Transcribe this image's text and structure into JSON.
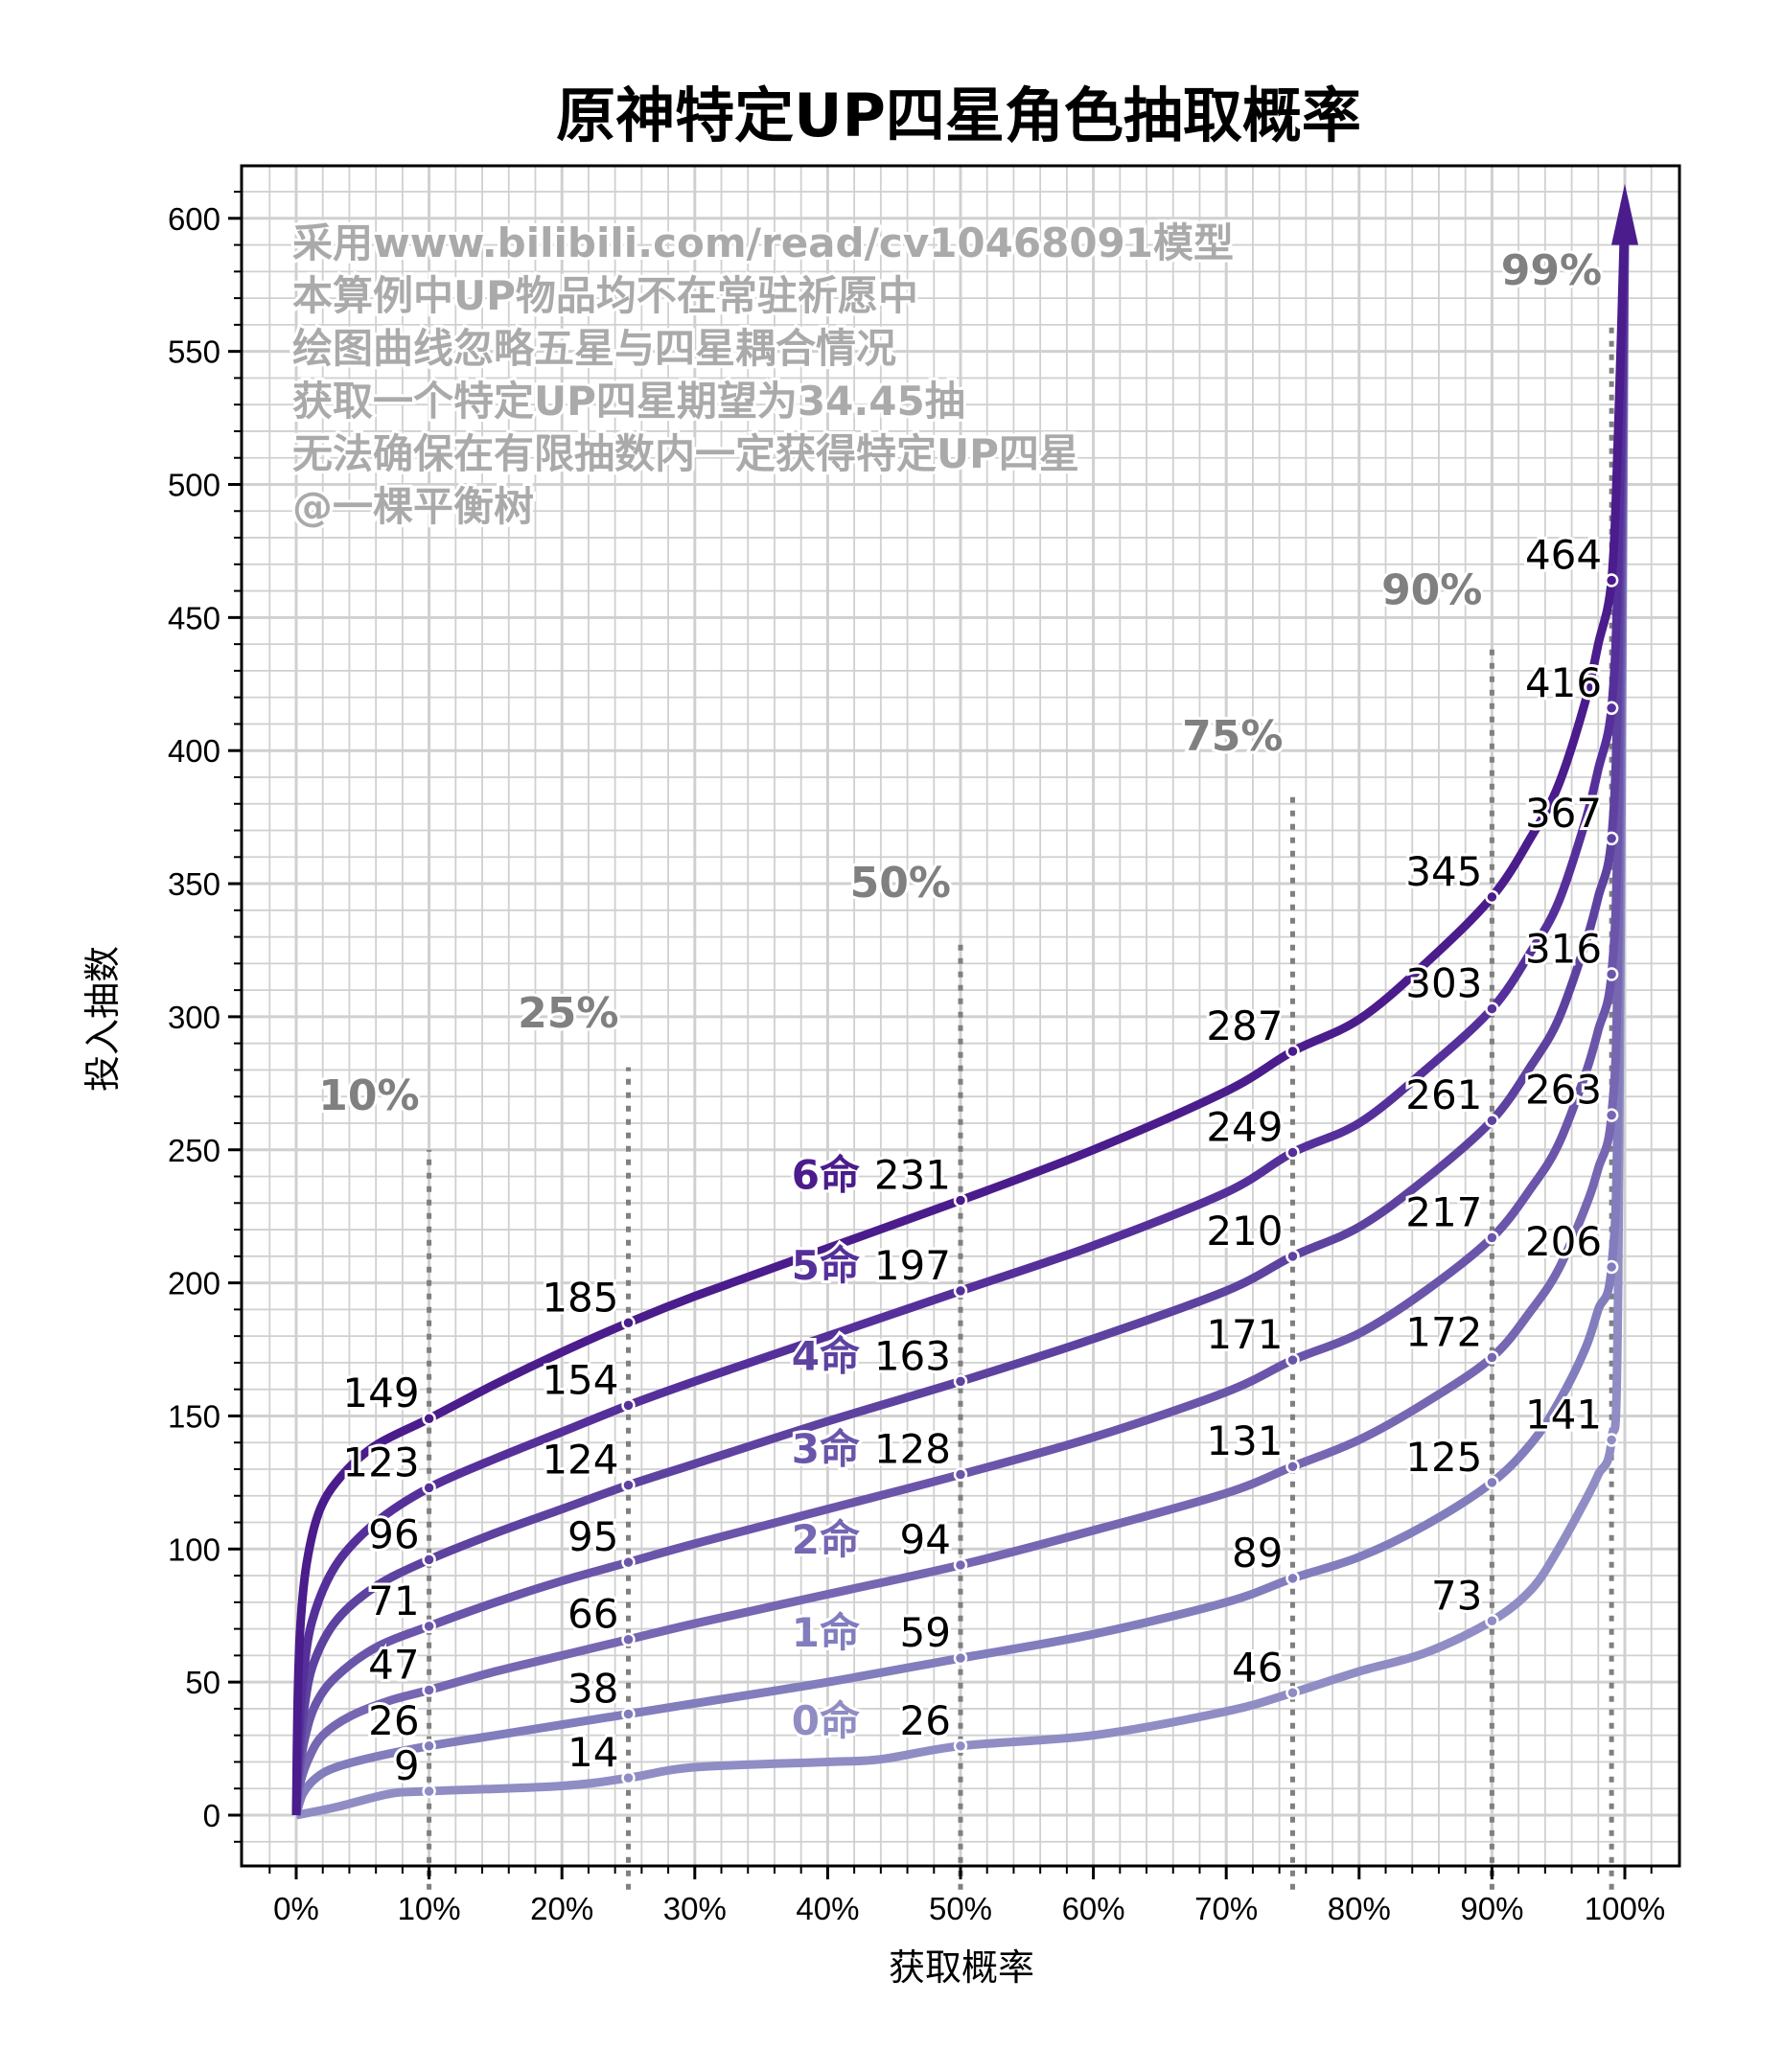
{
  "chart_data": {
    "type": "line",
    "title": "原神特定UP四星角色抽取概率",
    "xlabel": "获取概率",
    "ylabel": "投入抽数",
    "xlim": [
      -4,
      104
    ],
    "ylim": [
      -20,
      620
    ],
    "grid": true,
    "x_ticks": [
      "0%",
      "10%",
      "20%",
      "30%",
      "40%",
      "50%",
      "60%",
      "70%",
      "80%",
      "90%",
      "100%"
    ],
    "x_tick_values": [
      0,
      10,
      20,
      30,
      40,
      50,
      60,
      70,
      80,
      90,
      100
    ],
    "y_ticks": [
      0,
      50,
      100,
      150,
      200,
      250,
      300,
      350,
      400,
      450,
      500,
      550,
      600
    ],
    "annotation_lines": [
      "采用www.bilibili.com/read/cv10468091模型",
      "本算例中UP物品均不在常驻祈愿中",
      "绘图曲线忽略五星与四星耦合情况",
      "获取一个特定UP四星期望为34.45抽",
      "无法确保在有限抽数内一定获得特定UP四星",
      "@一棵平衡树"
    ],
    "percentile_markers": [
      {
        "x": 10,
        "label": "10%",
        "top": 250
      },
      {
        "x": 25,
        "label": "25%",
        "top": 281
      },
      {
        "x": 50,
        "label": "50%",
        "top": 330
      },
      {
        "x": 75,
        "label": "75%",
        "top": 385
      },
      {
        "x": 90,
        "label": "90%",
        "top": 440
      },
      {
        "x": 99,
        "label": "99%",
        "top": 560
      }
    ],
    "marker_x": [
      10,
      25,
      50,
      75,
      90,
      99
    ],
    "series": [
      {
        "name": "0命",
        "color": "#8f8dc4",
        "values": [
          9,
          14,
          26,
          46,
          73,
          141
        ],
        "curve": [
          [
            0,
            0
          ],
          [
            3,
            3
          ],
          [
            7,
            8
          ],
          [
            10,
            9
          ],
          [
            20,
            11
          ],
          [
            25,
            14
          ],
          [
            30,
            18
          ],
          [
            40,
            20
          ],
          [
            44,
            21
          ],
          [
            50,
            26
          ],
          [
            60,
            30
          ],
          [
            70,
            39
          ],
          [
            75,
            46
          ],
          [
            80,
            54
          ],
          [
            85,
            61
          ],
          [
            90,
            73
          ],
          [
            93,
            85
          ],
          [
            95,
            100
          ],
          [
            97,
            118
          ],
          [
            98,
            128
          ],
          [
            99,
            141
          ],
          [
            99.5,
            200
          ],
          [
            100,
            600
          ]
        ]
      },
      {
        "name": "1命",
        "color": "#827dbd",
        "values": [
          26,
          38,
          59,
          89,
          125,
          206
        ],
        "curve": [
          [
            0,
            0
          ],
          [
            0.5,
            8
          ],
          [
            1.5,
            14
          ],
          [
            3,
            18
          ],
          [
            6,
            22
          ],
          [
            10,
            26
          ],
          [
            15,
            30
          ],
          [
            20,
            34
          ],
          [
            25,
            38
          ],
          [
            30,
            42
          ],
          [
            40,
            50
          ],
          [
            50,
            59
          ],
          [
            60,
            68
          ],
          [
            70,
            80
          ],
          [
            75,
            89
          ],
          [
            80,
            97
          ],
          [
            85,
            109
          ],
          [
            90,
            125
          ],
          [
            93,
            140
          ],
          [
            95,
            155
          ],
          [
            97,
            175
          ],
          [
            98,
            190
          ],
          [
            99,
            206
          ],
          [
            99.5,
            280
          ],
          [
            100,
            600
          ]
        ]
      },
      {
        "name": "2命",
        "color": "#7766b2",
        "values": [
          47,
          66,
          94,
          131,
          172,
          263
        ],
        "curve": [
          [
            0,
            0
          ],
          [
            0.3,
            12
          ],
          [
            1,
            22
          ],
          [
            2,
            30
          ],
          [
            4,
            37
          ],
          [
            7,
            43
          ],
          [
            10,
            47
          ],
          [
            15,
            54
          ],
          [
            20,
            60
          ],
          [
            25,
            66
          ],
          [
            30,
            72
          ],
          [
            40,
            83
          ],
          [
            50,
            94
          ],
          [
            60,
            107
          ],
          [
            70,
            121
          ],
          [
            75,
            131
          ],
          [
            80,
            141
          ],
          [
            85,
            155
          ],
          [
            90,
            172
          ],
          [
            93,
            190
          ],
          [
            95,
            205
          ],
          [
            97,
            228
          ],
          [
            98,
            243
          ],
          [
            99,
            263
          ],
          [
            99.5,
            330
          ],
          [
            100,
            600
          ]
        ]
      },
      {
        "name": "3命",
        "color": "#6a55aa",
        "values": [
          71,
          95,
          128,
          171,
          217,
          316
        ],
        "curve": [
          [
            0,
            0
          ],
          [
            0.2,
            15
          ],
          [
            0.7,
            30
          ],
          [
            1.5,
            42
          ],
          [
            3,
            52
          ],
          [
            6,
            63
          ],
          [
            10,
            71
          ],
          [
            15,
            80
          ],
          [
            20,
            88
          ],
          [
            25,
            95
          ],
          [
            30,
            102
          ],
          [
            40,
            115
          ],
          [
            50,
            128
          ],
          [
            60,
            142
          ],
          [
            70,
            159
          ],
          [
            75,
            171
          ],
          [
            80,
            181
          ],
          [
            85,
            197
          ],
          [
            90,
            217
          ],
          [
            93,
            236
          ],
          [
            95,
            252
          ],
          [
            97,
            278
          ],
          [
            98,
            295
          ],
          [
            99,
            316
          ],
          [
            99.5,
            380
          ],
          [
            100,
            600
          ]
        ]
      },
      {
        "name": "4命",
        "color": "#5e42a0",
        "values": [
          96,
          124,
          163,
          210,
          261,
          367
        ],
        "curve": [
          [
            0,
            0
          ],
          [
            0.2,
            20
          ],
          [
            0.6,
            40
          ],
          [
            1.3,
            57
          ],
          [
            3,
            73
          ],
          [
            6,
            86
          ],
          [
            10,
            96
          ],
          [
            15,
            106
          ],
          [
            20,
            115
          ],
          [
            25,
            124
          ],
          [
            30,
            132
          ],
          [
            40,
            148
          ],
          [
            50,
            163
          ],
          [
            60,
            179
          ],
          [
            70,
            197
          ],
          [
            75,
            210
          ],
          [
            80,
            221
          ],
          [
            85,
            239
          ],
          [
            90,
            261
          ],
          [
            93,
            282
          ],
          [
            95,
            299
          ],
          [
            97,
            327
          ],
          [
            98,
            345
          ],
          [
            99,
            367
          ],
          [
            99.5,
            430
          ],
          [
            100,
            600
          ]
        ]
      },
      {
        "name": "5命",
        "color": "#56309a",
        "values": [
          123,
          154,
          197,
          249,
          303,
          416
        ],
        "curve": [
          [
            0,
            0
          ],
          [
            0.15,
            25
          ],
          [
            0.5,
            50
          ],
          [
            1.2,
            73
          ],
          [
            3,
            94
          ],
          [
            6,
            110
          ],
          [
            10,
            123
          ],
          [
            15,
            134
          ],
          [
            20,
            144
          ],
          [
            25,
            154
          ],
          [
            30,
            163
          ],
          [
            40,
            180
          ],
          [
            50,
            197
          ],
          [
            60,
            214
          ],
          [
            70,
            234
          ],
          [
            75,
            249
          ],
          [
            80,
            260
          ],
          [
            85,
            280
          ],
          [
            90,
            303
          ],
          [
            93,
            325
          ],
          [
            95,
            343
          ],
          [
            97,
            373
          ],
          [
            98,
            393
          ],
          [
            99,
            416
          ],
          [
            99.5,
            470
          ],
          [
            100,
            600
          ]
        ]
      },
      {
        "name": "6命",
        "color": "#4b1c8c",
        "values": [
          149,
          185,
          231,
          287,
          345,
          464
        ],
        "curve": [
          [
            0,
            0
          ],
          [
            0.1,
            40
          ],
          [
            0.3,
            70
          ],
          [
            0.8,
            95
          ],
          [
            1.8,
            115
          ],
          [
            3.5,
            128
          ],
          [
            6,
            139
          ],
          [
            10,
            149
          ],
          [
            15,
            162
          ],
          [
            20,
            174
          ],
          [
            25,
            185
          ],
          [
            30,
            195
          ],
          [
            40,
            213
          ],
          [
            50,
            231
          ],
          [
            60,
            250
          ],
          [
            70,
            272
          ],
          [
            75,
            287
          ],
          [
            80,
            299
          ],
          [
            85,
            320
          ],
          [
            90,
            345
          ],
          [
            93,
            368
          ],
          [
            95,
            387
          ],
          [
            97,
            418
          ],
          [
            98,
            440
          ],
          [
            99,
            464
          ],
          [
            99.5,
            520
          ],
          [
            100,
            606
          ]
        ]
      }
    ],
    "series_labels_at_x50": [
      {
        "name": "6命",
        "value_label": "231"
      },
      {
        "name": "5命",
        "value_label": "197"
      },
      {
        "name": "4命",
        "value_label": "163"
      },
      {
        "name": "3命",
        "value_label": "128"
      },
      {
        "name": "2命",
        "value_label": "94"
      },
      {
        "name": "1命",
        "value_label": "59"
      },
      {
        "name": "0命",
        "value_label": "26"
      }
    ]
  }
}
